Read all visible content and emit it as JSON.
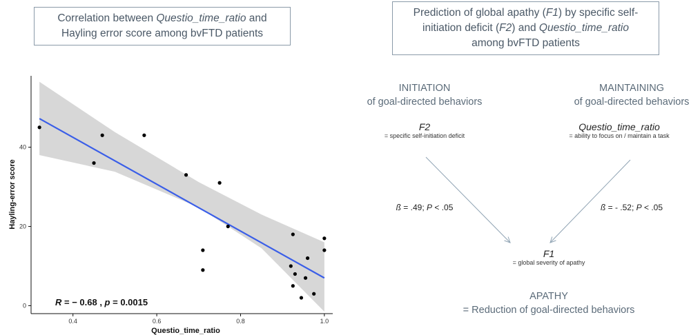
{
  "left_title": {
    "line1_pre": "Correlation between ",
    "line1_var": "Questio_time_ratio",
    "line1_post": " and",
    "line2": "Hayling error score  among bvFTD patients"
  },
  "right_title": {
    "line1_pre": "Prediction of global apathy (",
    "line1_var": "F1",
    "line1_post": ") by specific self-",
    "line2_pre": "initiation deficit (",
    "line2_var": "F2",
    "line2_mid": ") and ",
    "line2_var2": "Questio_time_ratio",
    "line3": "among bvFTD patients"
  },
  "diagram": {
    "initiation": {
      "line1": "INITIATION",
      "line2": "of goal-directed behaviors"
    },
    "maintaining": {
      "line1": "MAINTAINING",
      "line2": "of goal-directed behaviors"
    },
    "f2": {
      "name": "F2",
      "desc": "= specific self-initiation deficit"
    },
    "questio": {
      "name": "Questio_time_ratio",
      "desc": "= ability to focus on / maintain a task"
    },
    "beta_left": {
      "sym": "ß",
      "val": " = .49; ",
      "p": "P",
      "rest": " < .05"
    },
    "beta_right": {
      "sym": "ß",
      "val": " = - .52; ",
      "p": "P",
      "rest": " < .05"
    },
    "f1": {
      "name": "F1",
      "desc": "= global severity of apathy"
    },
    "apathy": {
      "line1": "APATHY",
      "line2": "= Reduction of goal-directed behaviors"
    }
  },
  "colors": {
    "line": "#3a5ee8",
    "band": "#d0d0d0",
    "arrow": "#8fa3b3"
  },
  "chart_data": {
    "type": "scatter",
    "xlabel": "Questio_time_ratio",
    "ylabel": "Hayling-error score",
    "xlim": [
      0.3,
      1.02
    ],
    "ylim": [
      -2,
      58
    ],
    "xticks": [
      0.4,
      0.6,
      0.8,
      1.0
    ],
    "xtick_labels": [
      "0.4",
      "0.6",
      "0.8",
      "1.0"
    ],
    "yticks": [
      0,
      20,
      40
    ],
    "ytick_labels": [
      "0",
      "20",
      "40"
    ],
    "points": [
      [
        0.32,
        45
      ],
      [
        0.45,
        36
      ],
      [
        0.47,
        43
      ],
      [
        0.57,
        43
      ],
      [
        0.67,
        33
      ],
      [
        0.71,
        14
      ],
      [
        0.71,
        9
      ],
      [
        0.75,
        31
      ],
      [
        0.77,
        20
      ],
      [
        0.92,
        10
      ],
      [
        0.925,
        5
      ],
      [
        0.925,
        18
      ],
      [
        0.93,
        8
      ],
      [
        0.945,
        2
      ],
      [
        0.955,
        7
      ],
      [
        0.96,
        12
      ],
      [
        0.975,
        3
      ],
      [
        1.0,
        17
      ],
      [
        1.0,
        14
      ]
    ],
    "regression": {
      "x": [
        0.32,
        1.0
      ],
      "y": [
        47.2,
        7.0
      ]
    },
    "band": {
      "x": [
        0.32,
        0.5,
        0.7,
        0.85,
        1.0
      ],
      "upper": [
        56.5,
        43.8,
        31.2,
        23.0,
        16.0
      ],
      "lower": [
        38.0,
        33.8,
        24.8,
        14.5,
        -1.5
      ]
    },
    "annotation": {
      "r_label": "R",
      "r_value": " = − 0.68 , ",
      "p_label": "p",
      "p_value": " = 0.0015"
    },
    "grid": false
  }
}
